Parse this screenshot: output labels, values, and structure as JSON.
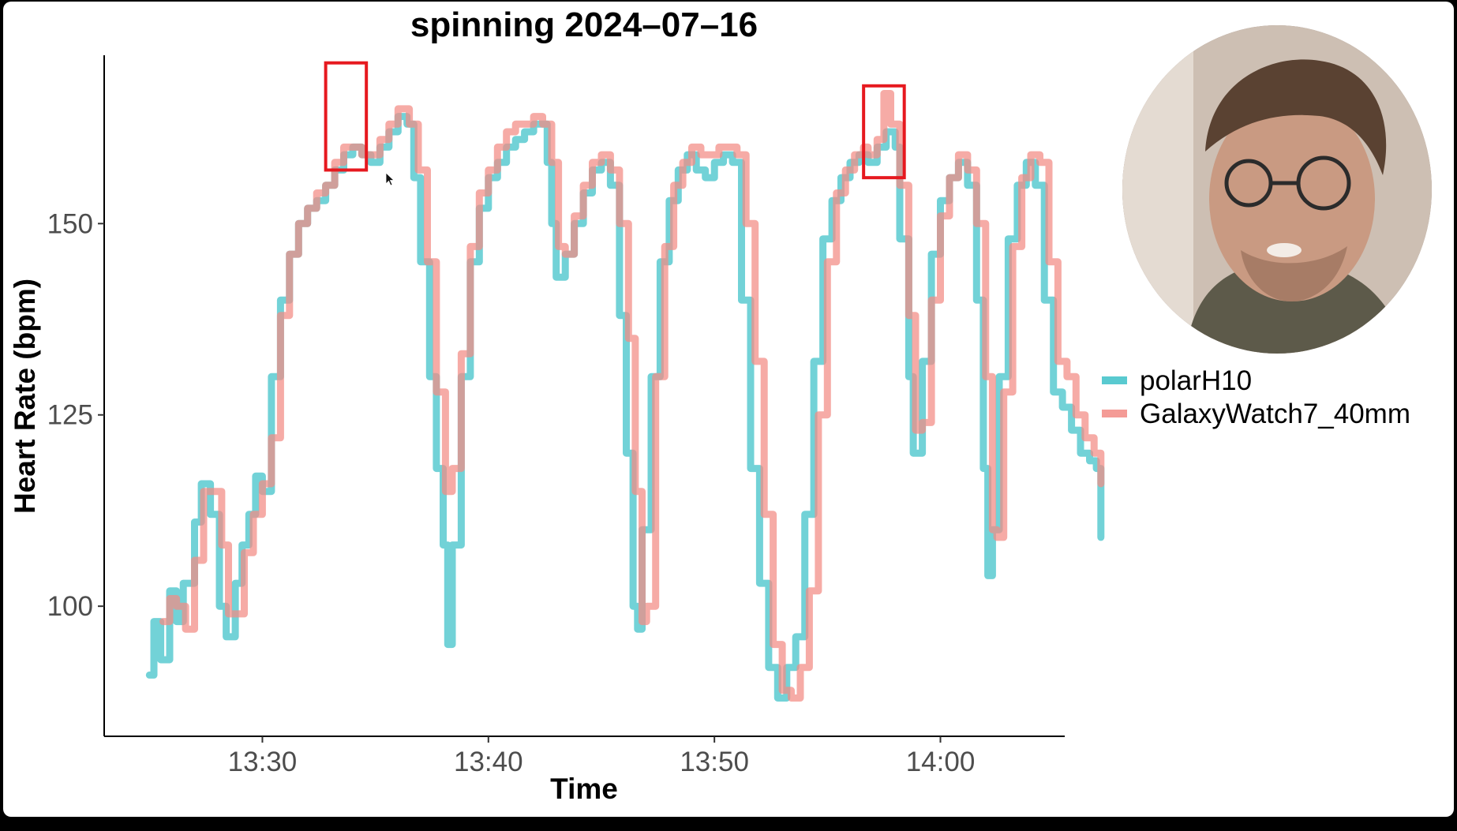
{
  "chart_data": {
    "type": "line",
    "title": "spinning 2024–07–16",
    "xlabel": "Time",
    "ylabel": "Heart Rate (bpm)",
    "x_ticks": [
      {
        "label": "13:30",
        "minute": 30
      },
      {
        "label": "13:40",
        "minute": 40
      },
      {
        "label": "13:50",
        "minute": 50
      },
      {
        "label": "14:00",
        "minute": 60
      }
    ],
    "y_ticks": [
      100,
      125,
      150
    ],
    "xlim": [
      "13:23:00",
      "14:05:30"
    ],
    "ylim": [
      83,
      172
    ],
    "grid": false,
    "legend_position": "right",
    "series": [
      {
        "name": "polarH10",
        "color": "#3cc1c8",
        "points": [
          [
            "13:25:00",
            91
          ],
          [
            "13:25:12",
            98
          ],
          [
            "13:25:30",
            93
          ],
          [
            "13:25:54",
            102
          ],
          [
            "13:26:12",
            98
          ],
          [
            "13:26:30",
            103
          ],
          [
            "13:27:00",
            111
          ],
          [
            "13:27:18",
            116
          ],
          [
            "13:27:42",
            112
          ],
          [
            "13:28:06",
            100
          ],
          [
            "13:28:24",
            96
          ],
          [
            "13:28:48",
            103
          ],
          [
            "13:29:06",
            108
          ],
          [
            "13:29:24",
            112
          ],
          [
            "13:29:42",
            117
          ],
          [
            "13:30:00",
            115
          ],
          [
            "13:30:24",
            130
          ],
          [
            "13:30:48",
            140
          ],
          [
            "13:31:12",
            146
          ],
          [
            "13:31:36",
            150
          ],
          [
            "13:32:00",
            152
          ],
          [
            "13:32:24",
            153
          ],
          [
            "13:32:48",
            155
          ],
          [
            "13:33:12",
            157
          ],
          [
            "13:33:36",
            159
          ],
          [
            "13:34:00",
            160
          ],
          [
            "13:34:24",
            159
          ],
          [
            "13:34:48",
            158
          ],
          [
            "13:35:12",
            160
          ],
          [
            "13:35:36",
            162
          ],
          [
            "13:36:00",
            164
          ],
          [
            "13:36:24",
            163
          ],
          [
            "13:36:42",
            156
          ],
          [
            "13:37:00",
            145
          ],
          [
            "13:37:24",
            130
          ],
          [
            "13:37:42",
            118
          ],
          [
            "13:38:00",
            108
          ],
          [
            "13:38:12",
            95
          ],
          [
            "13:38:24",
            108
          ],
          [
            "13:38:48",
            130
          ],
          [
            "13:39:12",
            145
          ],
          [
            "13:39:36",
            152
          ],
          [
            "13:40:00",
            156
          ],
          [
            "13:40:24",
            158
          ],
          [
            "13:40:48",
            160
          ],
          [
            "13:41:12",
            161
          ],
          [
            "13:41:36",
            162
          ],
          [
            "13:42:00",
            163
          ],
          [
            "13:42:24",
            163
          ],
          [
            "13:42:36",
            158
          ],
          [
            "13:42:48",
            150
          ],
          [
            "13:43:00",
            143
          ],
          [
            "13:43:24",
            146
          ],
          [
            "13:43:48",
            150
          ],
          [
            "13:44:12",
            154
          ],
          [
            "13:44:36",
            157
          ],
          [
            "13:45:00",
            158
          ],
          [
            "13:45:24",
            155
          ],
          [
            "13:45:48",
            138
          ],
          [
            "13:46:06",
            120
          ],
          [
            "13:46:24",
            100
          ],
          [
            "13:46:36",
            97
          ],
          [
            "13:46:48",
            110
          ],
          [
            "13:47:12",
            130
          ],
          [
            "13:47:36",
            145
          ],
          [
            "13:48:00",
            153
          ],
          [
            "13:48:24",
            157
          ],
          [
            "13:48:48",
            159
          ],
          [
            "13:49:12",
            157
          ],
          [
            "13:49:36",
            156
          ],
          [
            "13:50:00",
            158
          ],
          [
            "13:50:24",
            159
          ],
          [
            "13:50:48",
            158
          ],
          [
            "13:51:12",
            140
          ],
          [
            "13:51:36",
            118
          ],
          [
            "13:52:00",
            103
          ],
          [
            "13:52:24",
            92
          ],
          [
            "13:52:48",
            88
          ],
          [
            "13:53:12",
            92
          ],
          [
            "13:53:36",
            96
          ],
          [
            "13:54:00",
            112
          ],
          [
            "13:54:24",
            132
          ],
          [
            "13:54:48",
            148
          ],
          [
            "13:55:12",
            153
          ],
          [
            "13:55:36",
            156
          ],
          [
            "13:56:00",
            158
          ],
          [
            "13:56:24",
            159
          ],
          [
            "13:56:48",
            158
          ],
          [
            "13:57:12",
            160
          ],
          [
            "13:57:36",
            162
          ],
          [
            "13:58:00",
            160
          ],
          [
            "13:58:12",
            148
          ],
          [
            "13:58:36",
            130
          ],
          [
            "13:58:48",
            120
          ],
          [
            "13:59:12",
            132
          ],
          [
            "13:59:36",
            146
          ],
          [
            "14:00:00",
            153
          ],
          [
            "14:00:24",
            156
          ],
          [
            "14:00:48",
            158
          ],
          [
            "14:01:12",
            155
          ],
          [
            "14:01:36",
            140
          ],
          [
            "14:01:54",
            118
          ],
          [
            "14:02:06",
            104
          ],
          [
            "14:02:18",
            110
          ],
          [
            "14:02:36",
            130
          ],
          [
            "14:03:00",
            148
          ],
          [
            "14:03:24",
            155
          ],
          [
            "14:03:48",
            158
          ],
          [
            "14:04:12",
            155
          ],
          [
            "14:04:36",
            140
          ],
          [
            "14:05:00",
            128
          ],
          [
            "14:05:24",
            126
          ],
          [
            "14:05:48",
            123
          ],
          [
            "14:06:12",
            120
          ],
          [
            "14:06:36",
            119
          ],
          [
            "14:06:54",
            118
          ],
          [
            "14:07:06",
            109
          ]
        ]
      },
      {
        "name": "GalaxyWatch7_40mm",
        "color": "#f28a84",
        "points": [
          [
            "13:25:36",
            98
          ],
          [
            "13:25:54",
            101
          ],
          [
            "13:26:12",
            100
          ],
          [
            "13:26:36",
            97
          ],
          [
            "13:27:00",
            106
          ],
          [
            "13:27:24",
            115
          ],
          [
            "13:27:48",
            115
          ],
          [
            "13:28:12",
            108
          ],
          [
            "13:28:30",
            99
          ],
          [
            "13:28:48",
            99
          ],
          [
            "13:29:12",
            107
          ],
          [
            "13:29:36",
            112
          ],
          [
            "13:30:00",
            116
          ],
          [
            "13:30:24",
            122
          ],
          [
            "13:30:48",
            138
          ],
          [
            "13:31:12",
            146
          ],
          [
            "13:31:36",
            150
          ],
          [
            "13:32:00",
            152
          ],
          [
            "13:32:24",
            154
          ],
          [
            "13:32:48",
            155
          ],
          [
            "13:33:12",
            158
          ],
          [
            "13:33:36",
            160
          ],
          [
            "13:34:00",
            160
          ],
          [
            "13:34:24",
            159
          ],
          [
            "13:34:48",
            159
          ],
          [
            "13:35:12",
            161
          ],
          [
            "13:35:36",
            163
          ],
          [
            "13:36:00",
            165
          ],
          [
            "13:36:30",
            163
          ],
          [
            "13:36:54",
            157
          ],
          [
            "13:37:18",
            145
          ],
          [
            "13:37:42",
            128
          ],
          [
            "13:38:06",
            115
          ],
          [
            "13:38:24",
            118
          ],
          [
            "13:38:48",
            133
          ],
          [
            "13:39:12",
            147
          ],
          [
            "13:39:36",
            154
          ],
          [
            "13:40:00",
            157
          ],
          [
            "13:40:24",
            160
          ],
          [
            "13:40:48",
            162
          ],
          [
            "13:41:12",
            163
          ],
          [
            "13:41:36",
            163
          ],
          [
            "13:42:00",
            164
          ],
          [
            "13:42:24",
            163
          ],
          [
            "13:42:48",
            158
          ],
          [
            "13:43:06",
            147
          ],
          [
            "13:43:24",
            146
          ],
          [
            "13:43:48",
            151
          ],
          [
            "13:44:12",
            155
          ],
          [
            "13:44:36",
            158
          ],
          [
            "13:45:00",
            159
          ],
          [
            "13:45:24",
            157
          ],
          [
            "13:45:48",
            150
          ],
          [
            "13:46:12",
            135
          ],
          [
            "13:46:30",
            115
          ],
          [
            "13:46:48",
            98
          ],
          [
            "13:47:00",
            100
          ],
          [
            "13:47:24",
            130
          ],
          [
            "13:47:48",
            147
          ],
          [
            "13:48:12",
            155
          ],
          [
            "13:48:36",
            158
          ],
          [
            "13:49:00",
            160
          ],
          [
            "13:49:24",
            159
          ],
          [
            "13:49:48",
            159
          ],
          [
            "13:50:12",
            160
          ],
          [
            "13:50:36",
            160
          ],
          [
            "13:51:00",
            159
          ],
          [
            "13:51:24",
            150
          ],
          [
            "13:51:48",
            132
          ],
          [
            "13:52:12",
            112
          ],
          [
            "13:52:36",
            95
          ],
          [
            "13:53:00",
            89
          ],
          [
            "13:53:24",
            88
          ],
          [
            "13:53:48",
            92
          ],
          [
            "13:54:12",
            102
          ],
          [
            "13:54:36",
            125
          ],
          [
            "13:55:00",
            145
          ],
          [
            "13:55:24",
            154
          ],
          [
            "13:55:48",
            157
          ],
          [
            "13:56:12",
            159
          ],
          [
            "13:56:36",
            160
          ],
          [
            "13:56:48",
            159
          ],
          [
            "13:57:12",
            161
          ],
          [
            "13:57:30",
            167
          ],
          [
            "13:57:48",
            163
          ],
          [
            "13:58:12",
            155
          ],
          [
            "13:58:36",
            138
          ],
          [
            "13:58:54",
            123
          ],
          [
            "13:59:12",
            124
          ],
          [
            "13:59:36",
            140
          ],
          [
            "14:00:00",
            151
          ],
          [
            "14:00:24",
            156
          ],
          [
            "14:00:48",
            159
          ],
          [
            "14:01:12",
            157
          ],
          [
            "14:01:36",
            150
          ],
          [
            "14:02:00",
            130
          ],
          [
            "14:02:18",
            110
          ],
          [
            "14:02:30",
            109
          ],
          [
            "14:02:48",
            128
          ],
          [
            "14:03:12",
            147
          ],
          [
            "14:03:36",
            156
          ],
          [
            "14:04:00",
            159
          ],
          [
            "14:04:24",
            158
          ],
          [
            "14:04:48",
            145
          ],
          [
            "14:05:12",
            132
          ],
          [
            "14:05:36",
            130
          ],
          [
            "14:06:00",
            125
          ],
          [
            "14:06:24",
            122
          ],
          [
            "14:06:48",
            120
          ],
          [
            "14:07:06",
            116
          ]
        ]
      }
    ],
    "legend": [
      "polarH10",
      "GalaxyWatch7_40mm"
    ],
    "annotations": [
      {
        "type": "highlight-box",
        "color": "#e6191f",
        "x_range": [
          "13:32:48",
          "13:34:36"
        ],
        "y_range": [
          157,
          171
        ]
      },
      {
        "type": "highlight-box",
        "color": "#e6191f",
        "x_range": [
          "13:56:36",
          "13:58:24"
        ],
        "y_range": [
          156,
          168
        ]
      }
    ]
  },
  "webcam": {
    "icon": "presenter-avatar-icon"
  }
}
